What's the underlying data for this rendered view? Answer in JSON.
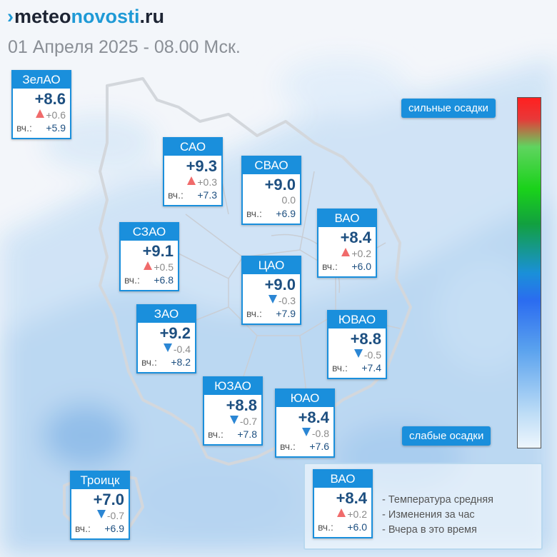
{
  "header": {
    "logo_mark": "›",
    "logo_part1": "meteo",
    "logo_part2": "novosti",
    "logo_part3": ".ru",
    "subtitle": "01 Апреля 2025 - 08.00 Мск."
  },
  "yesterday_label": "вч.:",
  "districts": [
    {
      "name": "ЗелАО",
      "temp": "+8.6",
      "change": "+0.6",
      "trend": "up",
      "yesterday": "+5.9"
    },
    {
      "name": "САО",
      "temp": "+9.3",
      "change": "+0.3",
      "trend": "up",
      "yesterday": "+7.3"
    },
    {
      "name": "СВАО",
      "temp": "+9.0",
      "change": "0.0",
      "trend": "none",
      "yesterday": "+6.9"
    },
    {
      "name": "ВАО",
      "temp": "+8.4",
      "change": "+0.2",
      "trend": "up",
      "yesterday": "+6.0"
    },
    {
      "name": "СЗАО",
      "temp": "+9.1",
      "change": "+0.5",
      "trend": "up",
      "yesterday": "+6.8"
    },
    {
      "name": "ЦАО",
      "temp": "+9.0",
      "change": "-0.3",
      "trend": "down",
      "yesterday": "+7.9"
    },
    {
      "name": "ЗАО",
      "temp": "+9.2",
      "change": "-0.4",
      "trend": "down",
      "yesterday": "+8.2"
    },
    {
      "name": "ЮВАО",
      "temp": "+8.8",
      "change": "-0.5",
      "trend": "down",
      "yesterday": "+7.4"
    },
    {
      "name": "ЮЗАО",
      "temp": "+8.8",
      "change": "-0.7",
      "trend": "down",
      "yesterday": "+7.8"
    },
    {
      "name": "ЮАО",
      "temp": "+8.4",
      "change": "-0.8",
      "trend": "down",
      "yesterday": "+7.6"
    },
    {
      "name": "Троицк",
      "temp": "+7.0",
      "change": "-0.7",
      "trend": "down",
      "yesterday": "+6.9"
    }
  ],
  "precip_scale": {
    "top_label": "сильные осадки",
    "bottom_label": "слабые осадки"
  },
  "legend": {
    "example": {
      "name": "ВАО",
      "temp": "+8.4",
      "change": "+0.2",
      "trend": "up",
      "yesterday": "+6.0"
    },
    "items": [
      "- Температура средняя",
      "- Изменения за час",
      "- Вчера в это время"
    ]
  },
  "colors": {
    "card_accent": "#1a8fdc",
    "temp_text": "#1d4f80",
    "trend_up": "#f06b6b",
    "trend_down": "#2b86d4",
    "precip_light": "#cfe4f7"
  }
}
